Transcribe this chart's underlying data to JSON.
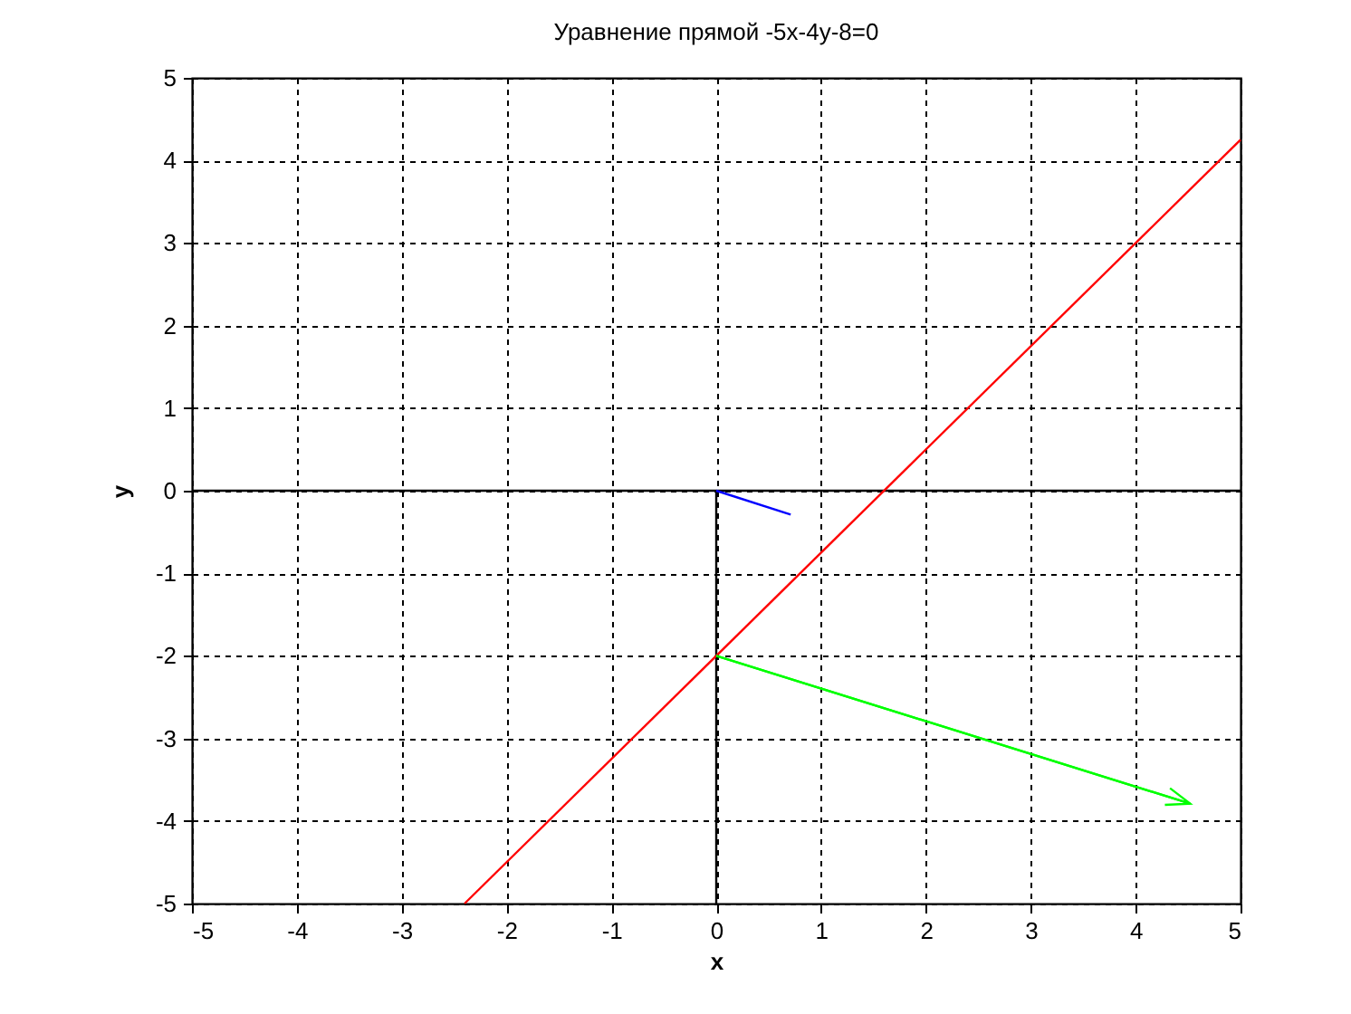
{
  "chart_data": {
    "type": "line",
    "title": "Уравнение прямой -5x-4y-8=0",
    "xlabel": "x",
    "ylabel": "y",
    "xlim": [
      -5,
      5
    ],
    "ylim": [
      -5,
      5
    ],
    "xticks": [
      -5,
      -4,
      -3,
      -2,
      -1,
      0,
      1,
      2,
      3,
      4,
      5
    ],
    "yticks": [
      -5,
      -4,
      -3,
      -2,
      -1,
      0,
      1,
      2,
      3,
      4,
      5
    ],
    "grid": true,
    "marker": "none",
    "line_style": "solid",
    "series": [
      {
        "color": "#ff0000",
        "x": [
          -2.4,
          5
        ],
        "values": [
          -5,
          4.25
        ]
      },
      {
        "color": "#0000ff",
        "x": [
          0,
          0.71
        ],
        "values": [
          0,
          -0.29
        ]
      },
      {
        "color": "#00ff00",
        "x": [
          0,
          4.52
        ],
        "values": [
          -2,
          -3.79
        ]
      }
    ],
    "ref_lines": [
      {
        "axis": "x",
        "value": 0,
        "color": "#000000"
      },
      {
        "axis": "y",
        "value": 0,
        "color": "#000000"
      }
    ]
  }
}
